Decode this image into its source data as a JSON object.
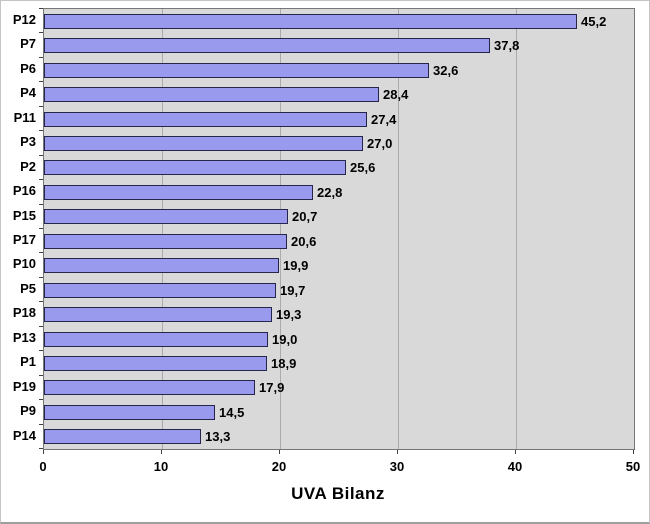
{
  "chart_data": {
    "type": "bar",
    "orientation": "horizontal",
    "title": "UVA Bilanz",
    "xlabel": "UVA Bilanz",
    "categories": [
      "P12",
      "P7",
      "P6",
      "P4",
      "P11",
      "P3",
      "P2",
      "P16",
      "P15",
      "P17",
      "P10",
      "P5",
      "P18",
      "P13",
      "P1",
      "P19",
      "P9",
      "P14"
    ],
    "values": [
      45.2,
      37.8,
      32.6,
      28.4,
      27.4,
      27.0,
      25.6,
      22.8,
      20.7,
      20.6,
      19.9,
      19.7,
      19.3,
      19.0,
      18.9,
      17.9,
      14.5,
      13.3
    ],
    "value_labels": [
      "45,2",
      "37,8",
      "32,6",
      "28,4",
      "27,4",
      "27,0",
      "25,6",
      "22,8",
      "20,7",
      "20,6",
      "19,9",
      "19,7",
      "19,3",
      "19,0",
      "18,9",
      "17,9",
      "14,5",
      "13,3"
    ],
    "xlim": [
      0,
      50
    ],
    "xticks": [
      0,
      10,
      20,
      30,
      40,
      50
    ],
    "grid": true,
    "legend": false,
    "colors": {
      "bar_fill": "#9999EE",
      "bar_border": "#26264D",
      "plot_bg": "#D9D9D9",
      "gridline": "#ABABAB",
      "plot_border": "#767676",
      "tick": "#404040",
      "text": "#000000",
      "page_bg": "#FFFFFF"
    }
  }
}
